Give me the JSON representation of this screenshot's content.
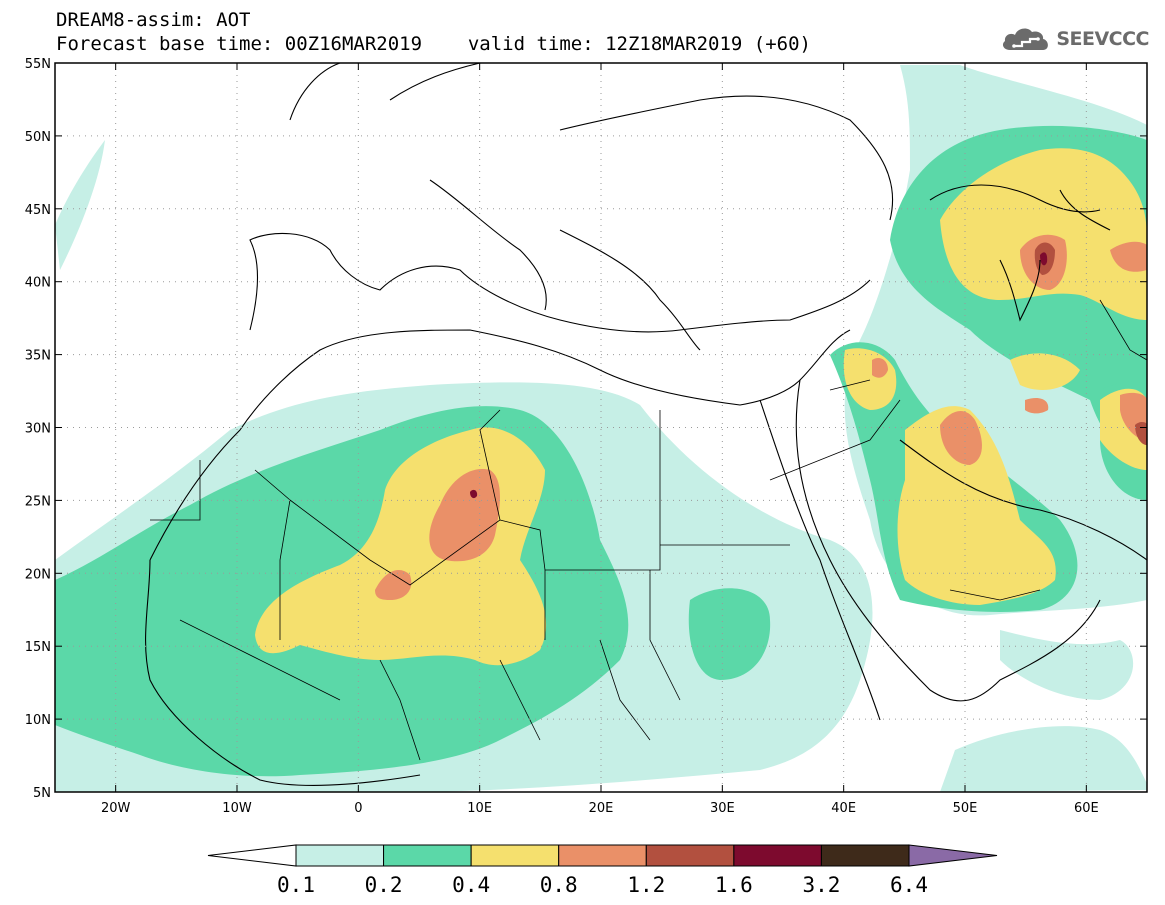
{
  "header": {
    "title_line1": "DREAM8-assim: AOT",
    "base_time_label": "Forecast base time: 00Z16MAR2019",
    "valid_time_label": "valid time: 12Z18MAR2019 (+60)"
  },
  "logo": {
    "text": "SEEVCCC",
    "icon": "cloud-icon"
  },
  "map": {
    "lat_range": [
      5,
      55
    ],
    "lon_range": [
      -25,
      65
    ],
    "grid": true,
    "lat_ticks": [
      "5N",
      "10N",
      "15N",
      "20N",
      "25N",
      "30N",
      "35N",
      "40N",
      "45N",
      "50N",
      "55N"
    ],
    "lon_ticks": [
      "20W",
      "10W",
      "0",
      "10E",
      "20E",
      "30E",
      "40E",
      "50E",
      "60E"
    ]
  },
  "colorbar": {
    "labels": [
      "0.1",
      "0.2",
      "0.4",
      "0.8",
      "1.2",
      "1.6",
      "3.2",
      "6.4"
    ],
    "colors": [
      "#ffffff",
      "#c6efe6",
      "#5bd8a8",
      "#f5e06e",
      "#ea9068",
      "#b2503f",
      "#7d0a2e",
      "#3e2a1a",
      "#8a6aa6"
    ]
  }
}
